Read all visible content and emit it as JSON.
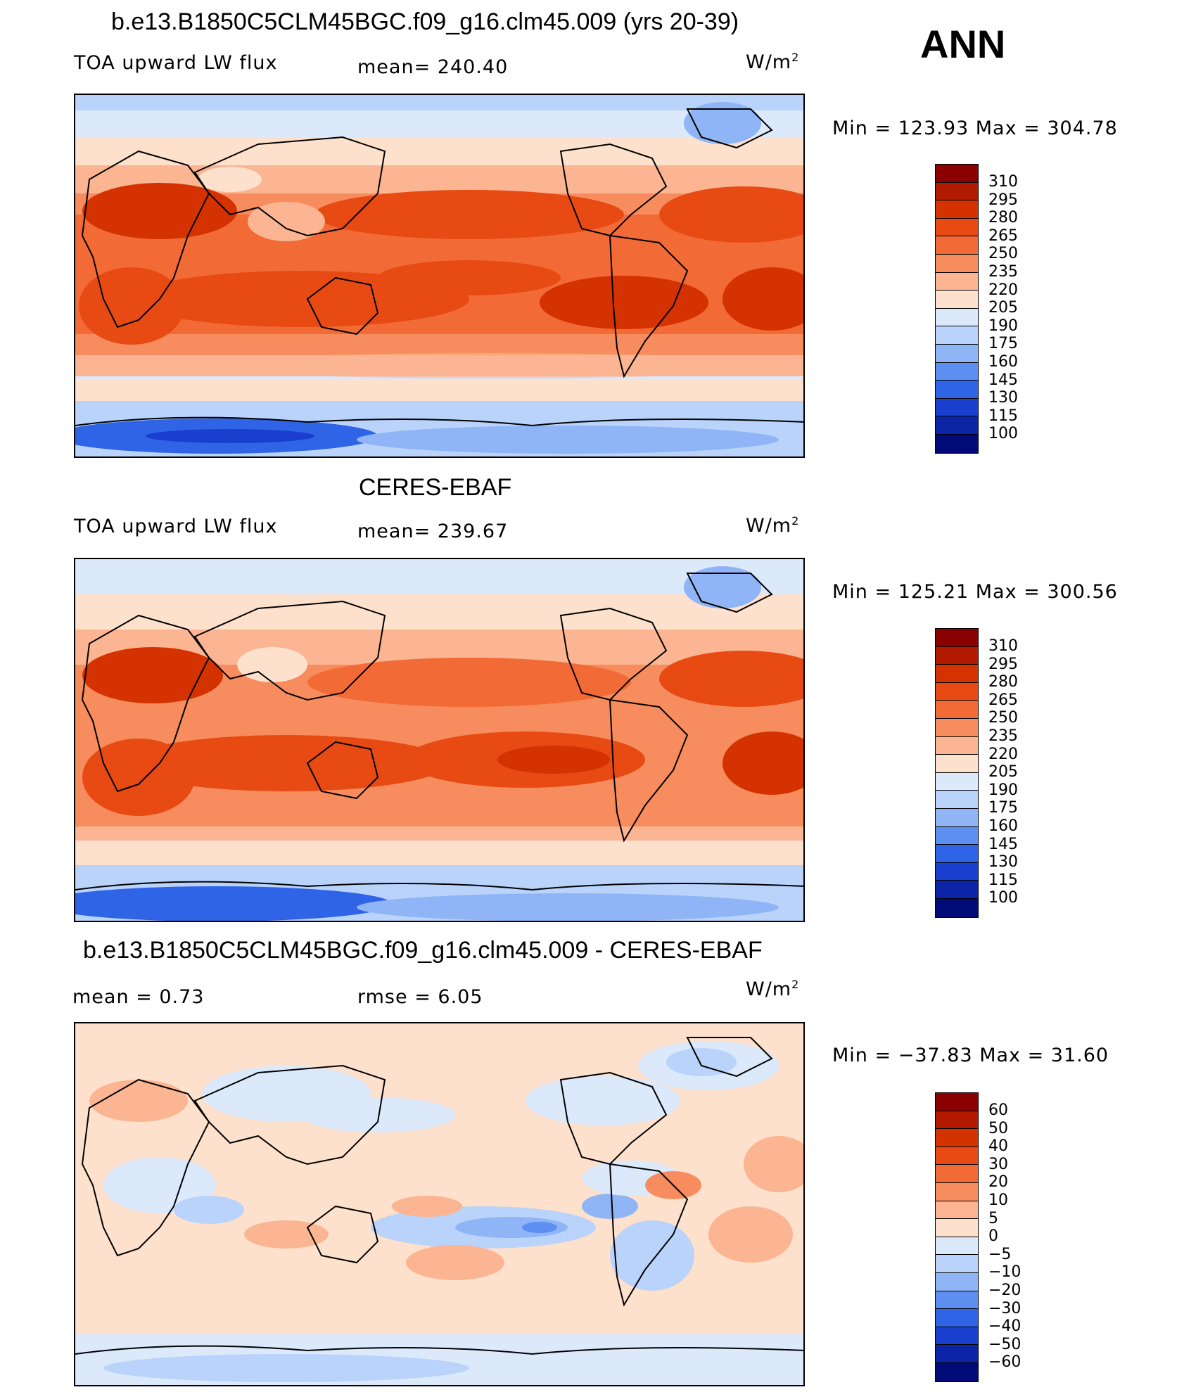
{
  "season": "ANN",
  "units_base": "W/m",
  "units_exp": "2",
  "panels": [
    {
      "title": "b.e13.B1850C5CLM45BGC.f09_g16.clm45.009 (yrs 20-39)",
      "left_label": "TOA upward LW flux",
      "center_label": "mean= 240.40",
      "minmax": "Min  =  123.93  Max  =  304.78",
      "levels": [
        "310",
        "295",
        "280",
        "265",
        "250",
        "235",
        "220",
        "205",
        "190",
        "175",
        "160",
        "145",
        "130",
        "115",
        "100"
      ],
      "colors": [
        "#8b0000",
        "#b21a00",
        "#d43200",
        "#e84a14",
        "#f26a35",
        "#f78d5e",
        "#fbb592",
        "#fde1cd",
        "#dbe9fb",
        "#b9d3fa",
        "#8fb5f6",
        "#5c8fef",
        "#2f64e6",
        "#1a3fcf",
        "#0b24a6",
        "#000b78"
      ]
    },
    {
      "title": "CERES-EBAF",
      "left_label": "TOA upward LW flux",
      "center_label": "mean= 239.67",
      "minmax": "Min  =  125.21  Max  =  300.56",
      "levels": [
        "310",
        "295",
        "280",
        "265",
        "250",
        "235",
        "220",
        "205",
        "190",
        "175",
        "160",
        "145",
        "130",
        "115",
        "100"
      ],
      "colors": [
        "#8b0000",
        "#b21a00",
        "#d43200",
        "#e84a14",
        "#f26a35",
        "#f78d5e",
        "#fbb592",
        "#fde1cd",
        "#dbe9fb",
        "#b9d3fa",
        "#8fb5f6",
        "#5c8fef",
        "#2f64e6",
        "#1a3fcf",
        "#0b24a6",
        "#000b78"
      ]
    },
    {
      "title": "b.e13.B1850C5CLM45BGC.f09_g16.clm45.009 - CERES-EBAF",
      "left_label": "mean  =      0.73",
      "center_label": "rmse  =      6.05",
      "minmax": "Min  =  −37.83  Max  =    31.60",
      "levels": [
        "60",
        "50",
        "40",
        "30",
        "20",
        "10",
        "5",
        "0",
        "−5",
        "−10",
        "−20",
        "−30",
        "−40",
        "−50",
        "−60"
      ],
      "colors": [
        "#8b0000",
        "#b21a00",
        "#d43200",
        "#e84a14",
        "#f26a35",
        "#f78d5e",
        "#fbb592",
        "#fde1cd",
        "#dbe9fb",
        "#b9d3fa",
        "#8fb5f6",
        "#5c8fef",
        "#2f64e6",
        "#1a3fcf",
        "#0b24a6",
        "#000b78"
      ]
    }
  ]
}
